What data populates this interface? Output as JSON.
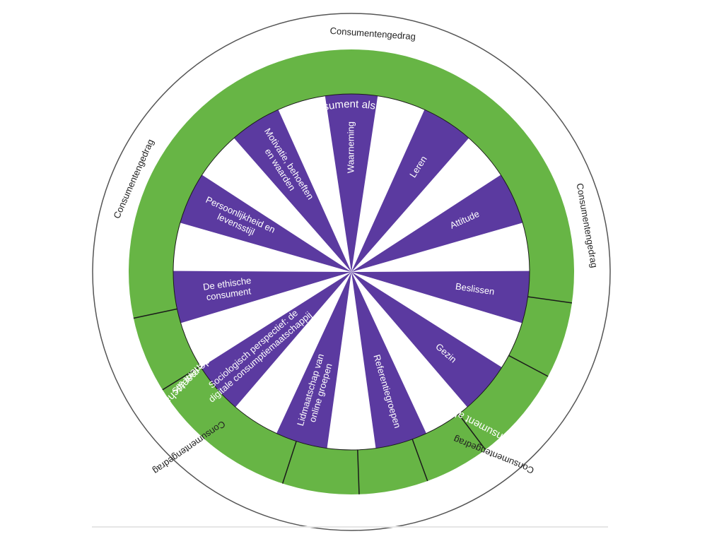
{
  "colors": {
    "ring_green": "#67b545",
    "wedge_purple": "#5b3aa0",
    "inner_white": "#ffffff",
    "divider": "#1a1a1a",
    "outer_circle": "#555555"
  },
  "outer_labels": [
    "Consumentengedrag",
    "Consumentengedrag",
    "Consumentengedrag",
    "Consumentengedrag"
  ],
  "ring_labels": {
    "top": "De consument als individu",
    "bottom_right": "De consument als groepslid",
    "bottom_left": "De consument als lid van de maatschappij"
  },
  "wedges": [
    {
      "label": "Waarneming",
      "icon": "none"
    },
    {
      "label": "Leren"
    },
    {
      "label": "Attitude"
    },
    {
      "label": "Beslissen"
    },
    {
      "label": "Gezin"
    },
    {
      "label": "Referentiegroepen"
    },
    {
      "label": "Lidmaatschap van online groepen"
    },
    {
      "label": "Sociologisch perspectief: de digitale consumptiemaatschappij"
    },
    {
      "label": "De ethische consument"
    },
    {
      "label": "Persoonlijkheid en levensstijl"
    },
    {
      "label": "Motivatie, behoeften en waarden"
    }
  ]
}
